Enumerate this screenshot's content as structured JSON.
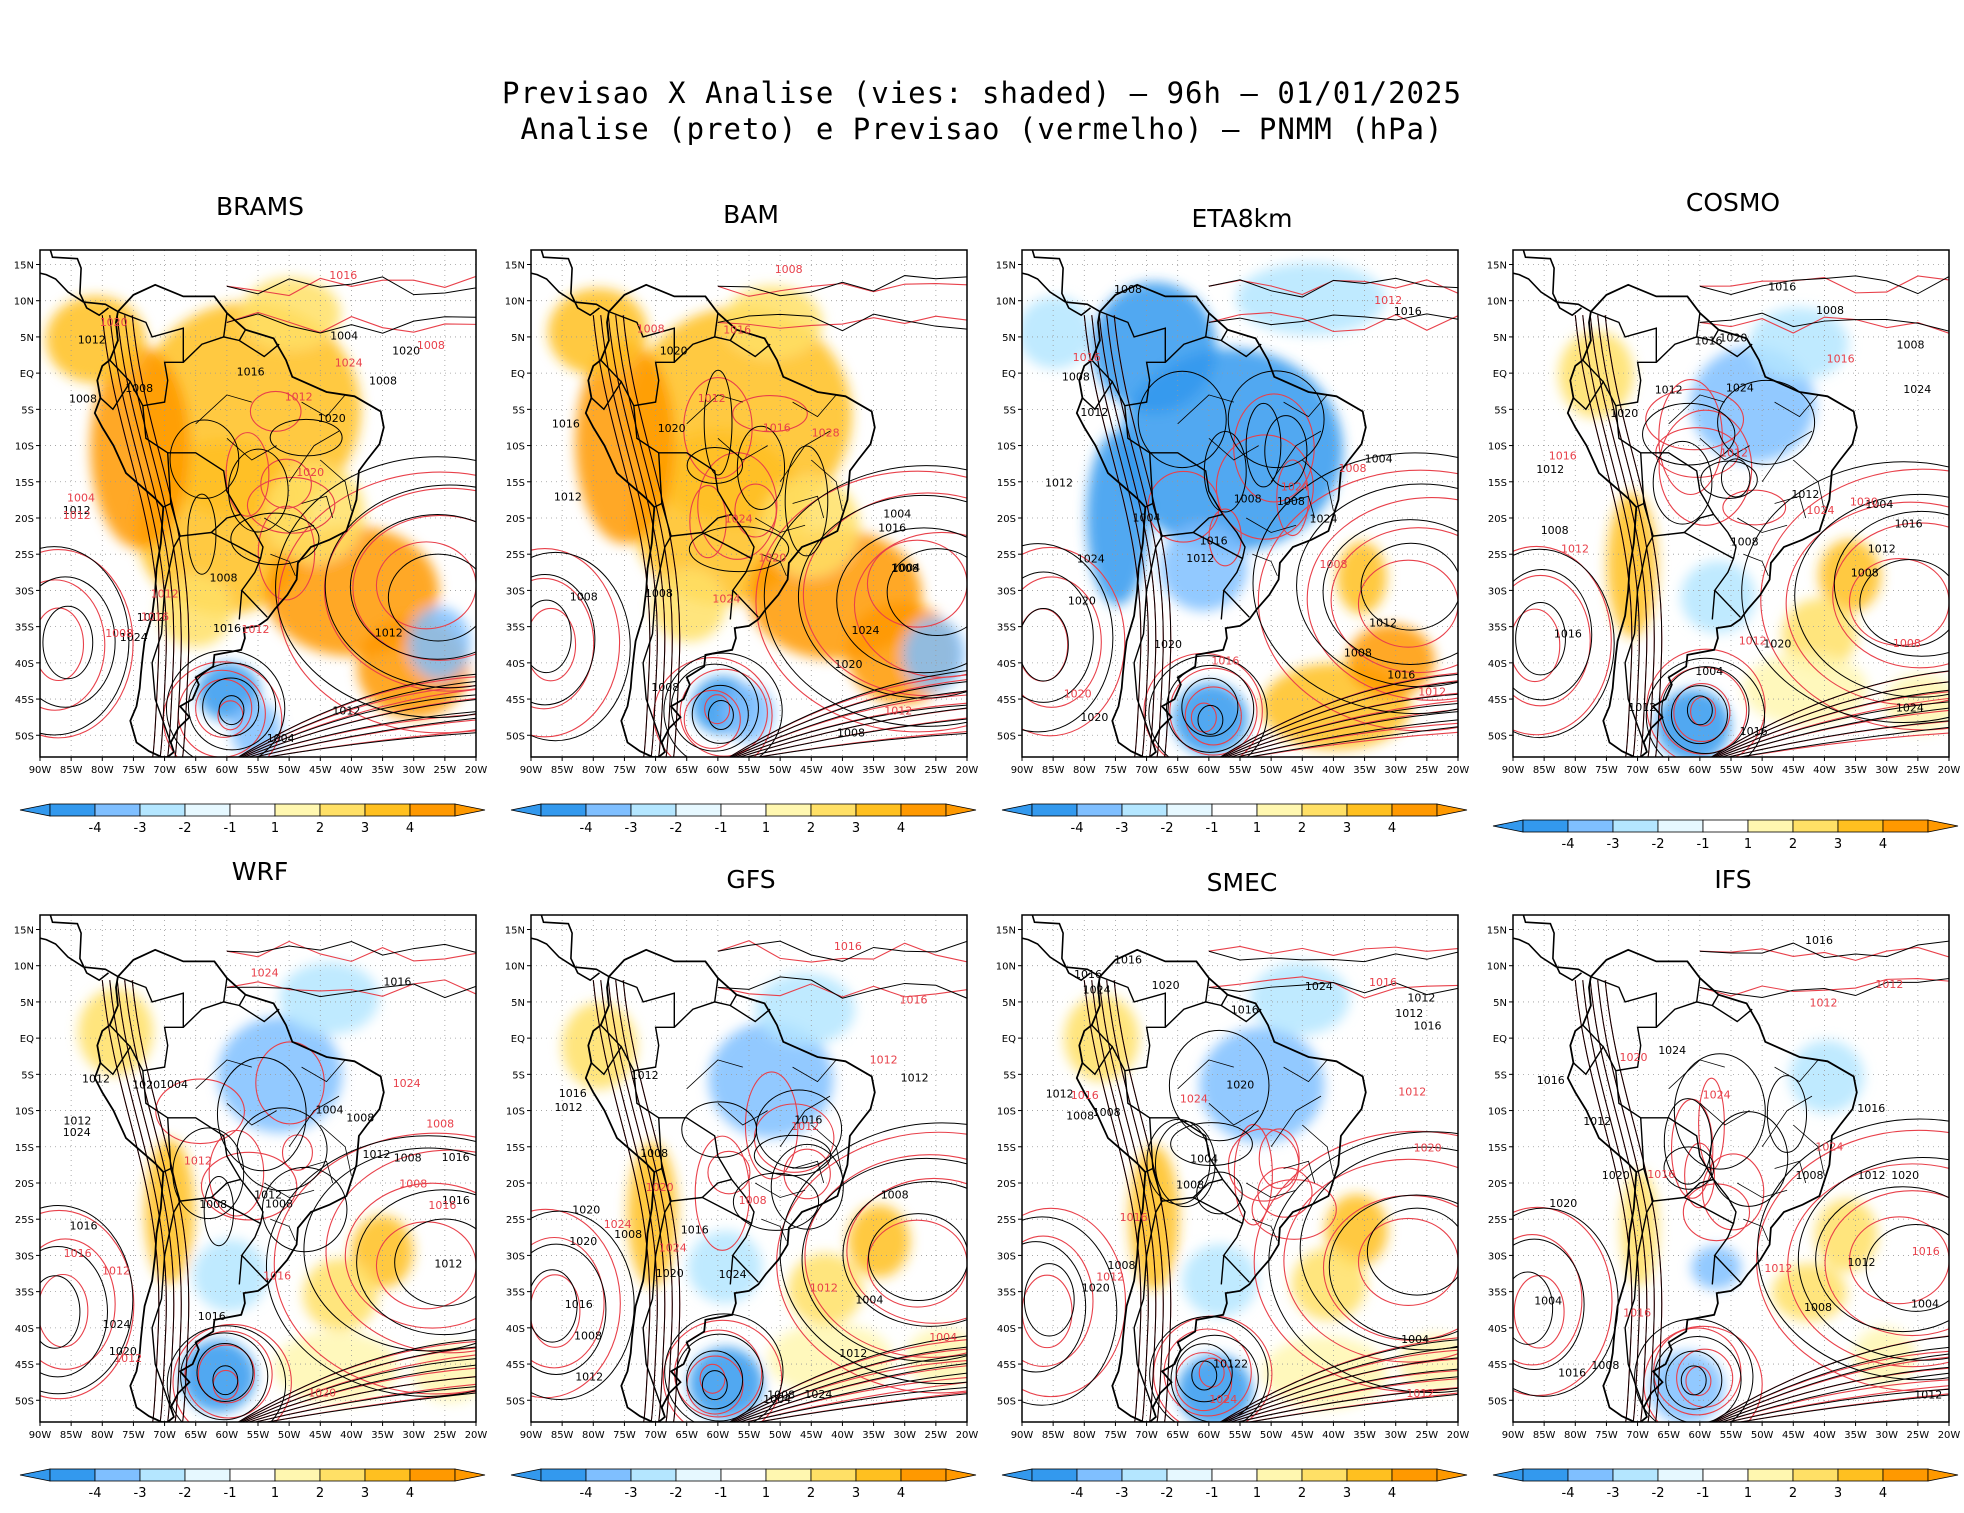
{
  "figure": {
    "title_line1": "Previsao X Analise (vies: shaded) – 96h – 01/01/2025",
    "title_line2": "Analise (preto) e Previsao (vermelho) – PNMM (hPa)"
  },
  "colors": {
    "analysis_contour": "#000000",
    "forecast_contour": "#e8404a",
    "bias_neg4": "#3399ee",
    "bias_neg3": "#7fbfff",
    "bias_neg2": "#b4e6ff",
    "bias_neg1": "#e6f8ff",
    "bias_zero": "#ffffff",
    "bias_pos1": "#fff7b0",
    "bias_pos2": "#ffe066",
    "bias_pos3": "#ffc020",
    "bias_pos4": "#ff9900"
  },
  "chart_data": {
    "type": "heatmap",
    "variable": "PNMM (hPa)",
    "lead_time": "96h",
    "valid_date": "01/01/2025",
    "x_axis": {
      "ticks": [
        "90W",
        "85W",
        "80W",
        "75W",
        "70W",
        "65W",
        "60W",
        "55W",
        "50W",
        "45W",
        "40W",
        "35W",
        "30W",
        "25W",
        "20W"
      ],
      "range": [
        -90,
        -20
      ]
    },
    "y_axis": {
      "ticks": [
        "15N",
        "10N",
        "5N",
        "EQ",
        "5S",
        "10S",
        "15S",
        "20S",
        "25S",
        "30S",
        "35S",
        "40S",
        "45S",
        "50S"
      ],
      "range": [
        -53,
        17
      ]
    },
    "colorbar": {
      "labels": [
        "-4",
        "-3",
        "-2",
        "-1",
        "1",
        "2",
        "3",
        "4"
      ]
    },
    "panels": [
      {
        "model": "BRAMS",
        "bias": "positive",
        "black_labels": [
          "1012",
          "1008",
          "1008",
          "1008",
          "1012",
          "1004",
          "1004",
          "1008",
          "1012",
          "1016",
          "1024",
          "1020",
          "1016",
          "1020",
          "1012",
          "1012"
        ],
        "red_labels": [
          "1012",
          "1016",
          "1012",
          "1008",
          "1012",
          "1008",
          "1004",
          "1020",
          "1024",
          "1020",
          "1012",
          "1016"
        ]
      },
      {
        "model": "BAM",
        "bias": "positive",
        "black_labels": [
          "1012",
          "1016",
          "1008",
          "1008",
          "1008",
          "1004",
          "1008",
          "1016",
          "1020",
          "1024",
          "1020",
          "1004",
          "1008",
          "1020"
        ],
        "red_labels": [
          "1012",
          "1016",
          "1012",
          "1008",
          "1020",
          "1024",
          "1028",
          "1024",
          "1016",
          "1008"
        ]
      },
      {
        "model": "ETA8km",
        "bias": "negative",
        "black_labels": [
          "1012",
          "1016",
          "1008",
          "1012",
          "1008",
          "1008",
          "1008",
          "1004",
          "1012",
          "1012",
          "1016",
          "1020",
          "1024",
          "1008",
          "1016",
          "1024",
          "1020",
          "1004",
          "1020"
        ],
        "red_labels": [
          "1012",
          "1008",
          "1008",
          "1016",
          "1020",
          "1024",
          "1012",
          "1016"
        ]
      },
      {
        "model": "COSMO",
        "bias": "mixed",
        "black_labels": [
          "1012",
          "1008",
          "1008",
          "1012",
          "1016",
          "1008",
          "1008",
          "1012",
          "1016",
          "1004",
          "1016",
          "1012",
          "1016",
          "1020",
          "1024",
          "1024",
          "1020",
          "1012",
          "1020",
          "1024",
          "1004",
          "1008",
          "1016"
        ],
        "red_labels": [
          "1012",
          "1012",
          "1012",
          "1016",
          "1020",
          "1024",
          "1016",
          "1008"
        ]
      },
      {
        "model": "WRF",
        "bias": "mixed",
        "black_labels": [
          "1012",
          "1016",
          "1012",
          "1008",
          "1012",
          "1016",
          "1008",
          "1012",
          "1016",
          "1008",
          "1004",
          "1008",
          "1012",
          "1016",
          "1024",
          "1020",
          "1024",
          "1004",
          "1020",
          "1016"
        ],
        "red_labels": [
          "1016",
          "1012",
          "1012",
          "1016",
          "1016",
          "1012",
          "1020",
          "1024",
          "1024",
          "1008",
          "1008"
        ]
      },
      {
        "model": "GFS",
        "bias": "mixed",
        "black_labels": [
          "1012",
          "1016",
          "1012",
          "1008",
          "1008",
          "1008",
          "1012",
          "1016",
          "1008",
          "1012",
          "1004",
          "1012",
          "1016",
          "1008",
          "1020",
          "1024",
          "1016",
          "1020",
          "1024",
          "1004",
          "1020"
        ],
        "red_labels": [
          "1012",
          "1012",
          "1008",
          "1004",
          "1016",
          "1020",
          "1016",
          "1024",
          "1024",
          "1012"
        ]
      },
      {
        "model": "SMEC",
        "bias": "mixed",
        "black_labels": [
          "1012",
          "1016",
          "10122",
          "1008",
          "1008",
          "1016",
          "1012",
          "1008",
          "1008",
          "1004",
          "1012",
          "1016",
          "1020",
          "1024",
          "1020",
          "1024",
          "1004",
          "1020",
          "1016"
        ],
        "red_labels": [
          "1016",
          "1012",
          "1012",
          "1016",
          "1020",
          "1024",
          "1024",
          "1016",
          "1012"
        ]
      },
      {
        "model": "IFS",
        "bias": "slight",
        "black_labels": [
          "1016",
          "1012",
          "1008",
          "1012",
          "1016",
          "1012",
          "1012",
          "1004",
          "1008",
          "1016",
          "1020",
          "1020",
          "1024",
          "1004",
          "1008",
          "1020",
          "1016"
        ],
        "red_labels": [
          "1016",
          "1012",
          "1012",
          "1016",
          "1020",
          "1024",
          "1024",
          "1012",
          "1016"
        ]
      }
    ]
  }
}
